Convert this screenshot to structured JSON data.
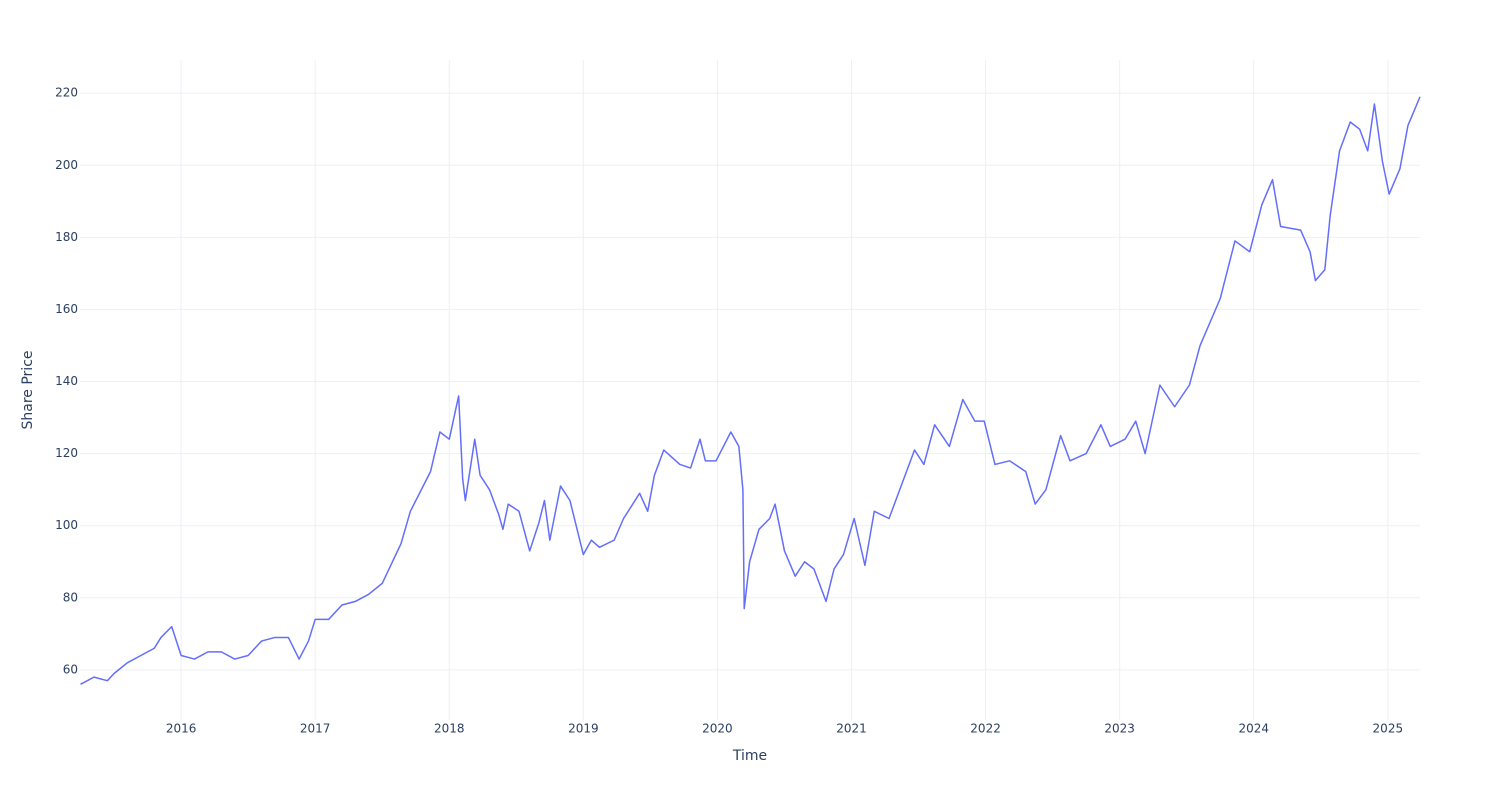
{
  "chart_data": {
    "type": "line",
    "x_label": "Time",
    "y_label": "Share Price",
    "color": "#636efa",
    "grid": true,
    "xlim": [
      2015.246,
      2025.24
    ],
    "ylim": [
      46.1,
      229.2
    ],
    "xticks": [
      2016,
      2017,
      2018,
      2019,
      2020,
      2021,
      2022,
      2023,
      2024,
      2025
    ],
    "yticks": [
      60,
      80,
      100,
      120,
      140,
      160,
      180,
      200,
      220
    ],
    "x": [
      2015.25,
      2015.35,
      2015.45,
      2015.5,
      2015.6,
      2015.7,
      2015.8,
      2015.85,
      2015.93,
      2016.0,
      2016.1,
      2016.2,
      2016.3,
      2016.4,
      2016.5,
      2016.6,
      2016.7,
      2016.8,
      2016.88,
      2016.95,
      2017.0,
      2017.1,
      2017.2,
      2017.3,
      2017.4,
      2017.5,
      2017.64,
      2017.71,
      2017.86,
      2017.93,
      2018.0,
      2018.07,
      2018.1,
      2018.12,
      2018.19,
      2018.23,
      2018.3,
      2018.37,
      2018.4,
      2018.44,
      2018.52,
      2018.6,
      2018.67,
      2018.71,
      2018.75,
      2018.83,
      2018.9,
      2019.0,
      2019.06,
      2019.12,
      2019.23,
      2019.3,
      2019.42,
      2019.48,
      2019.53,
      2019.6,
      2019.72,
      2019.8,
      2019.87,
      2019.91,
      2019.99,
      2020.1,
      2020.16,
      2020.19,
      2020.2,
      2020.24,
      2020.31,
      2020.39,
      2020.43,
      2020.5,
      2020.58,
      2020.65,
      2020.72,
      2020.81,
      2020.87,
      2020.94,
      2021.02,
      2021.1,
      2021.17,
      2021.28,
      2021.36,
      2021.47,
      2021.54,
      2021.62,
      2021.73,
      2021.83,
      2021.92,
      2021.99,
      2022.07,
      2022.18,
      2022.3,
      2022.37,
      2022.45,
      2022.56,
      2022.63,
      2022.75,
      2022.86,
      2022.93,
      2023.04,
      2023.12,
      2023.19,
      2023.3,
      2023.41,
      2023.52,
      2023.6,
      2023.75,
      2023.86,
      2023.97,
      2024.06,
      2024.14,
      2024.2,
      2024.35,
      2024.42,
      2024.46,
      2024.53,
      2024.57,
      2024.64,
      2024.72,
      2024.79,
      2024.85,
      2024.9,
      2024.96,
      2025.01,
      2025.09,
      2025.15,
      2025.24
    ],
    "values": [
      56,
      58,
      57,
      59,
      62,
      64,
      66,
      69,
      72,
      64,
      63,
      65,
      65,
      63,
      64,
      68,
      69,
      69,
      63,
      68,
      74,
      74,
      78,
      79,
      81,
      84,
      95,
      104,
      115,
      126,
      124,
      136,
      113,
      107,
      124,
      114,
      110,
      103,
      99,
      106,
      104,
      93,
      101,
      107,
      96,
      111,
      107,
      92,
      96,
      94,
      96,
      102,
      109,
      104,
      114,
      121,
      117,
      116,
      124,
      118,
      118,
      126,
      122,
      110,
      77,
      90,
      99,
      102,
      106,
      93,
      86,
      90,
      88,
      79,
      88,
      92,
      102,
      89,
      104,
      102,
      110,
      121,
      117,
      128,
      122,
      135,
      129,
      129,
      117,
      118,
      115,
      106,
      110,
      125,
      118,
      120,
      128,
      122,
      124,
      129,
      120,
      139,
      133,
      139,
      150,
      163,
      179,
      176,
      189,
      196,
      183,
      182,
      176,
      168,
      171,
      186,
      204,
      212,
      210,
      204,
      217,
      201,
      192,
      199,
      211,
      219
    ]
  }
}
